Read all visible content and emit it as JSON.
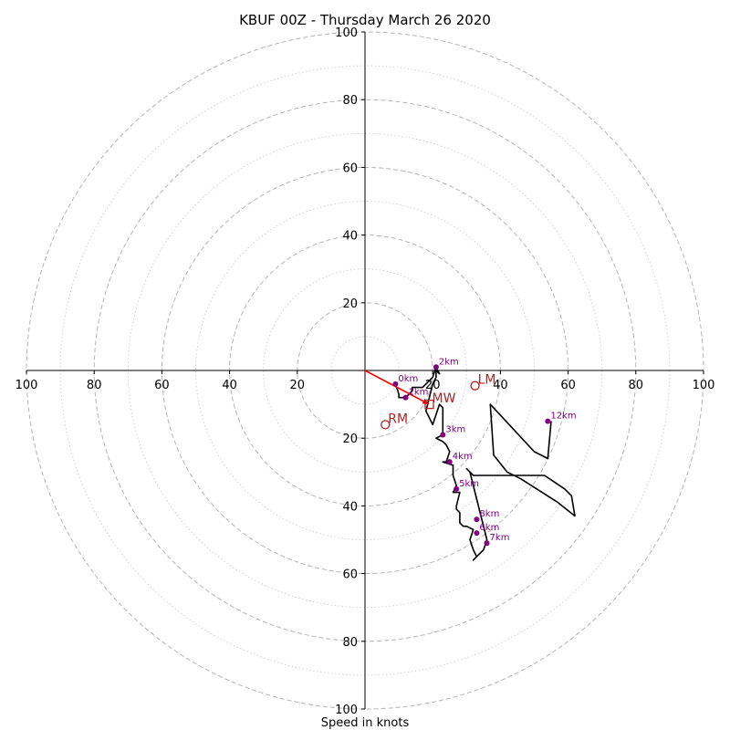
{
  "chart_data": {
    "type": "line",
    "title": "KBUF 00Z - Thursday March 26 2020",
    "xlabel": "Speed in knots",
    "axis_range": [
      -100,
      100
    ],
    "ring_step_major": 20,
    "ring_step_minor": 10,
    "grid": true,
    "tick_labels": {
      "left": [
        "100",
        "80",
        "60",
        "40",
        "20"
      ],
      "right": [
        "20",
        "40",
        "60",
        "80",
        "100"
      ],
      "top": [
        "100",
        "80",
        "60",
        "40",
        "20"
      ],
      "bottom": [
        "20",
        "40",
        "60",
        "80",
        "100"
      ]
    },
    "colors": {
      "hodograph": "#000000",
      "height_marker": "#800080",
      "storm_motion": "#b22222",
      "mean_wind_vector": "#ff0000",
      "major_ring": "#b4b4b4",
      "minor_ring": "#d2d2d2"
    },
    "hodograph": {
      "u": [
        9,
        10,
        10,
        12,
        14,
        14,
        17,
        20,
        21,
        22,
        21,
        21,
        20,
        19,
        18,
        20,
        22,
        23,
        23,
        21,
        23,
        24,
        25,
        24,
        23,
        26,
        26,
        27,
        26,
        28,
        27,
        27,
        28,
        28,
        29,
        30,
        32,
        31,
        32,
        33,
        32,
        34,
        35,
        36,
        33,
        31,
        30,
        32,
        41,
        53,
        56,
        59,
        61,
        62,
        57,
        46,
        42,
        38,
        37,
        37,
        50,
        54,
        55
      ],
      "v": [
        -4,
        -7,
        -8,
        -8,
        -6,
        -5,
        -5,
        -2,
        1,
        -1,
        0,
        -2,
        -4,
        -8,
        -12,
        -16,
        -10,
        -11,
        -19,
        -20,
        -21,
        -22,
        -24,
        -27,
        -27,
        -28,
        -31,
        -34,
        -36,
        -36,
        -40,
        -41,
        -42,
        -45,
        -46,
        -46,
        -47,
        -50,
        -53,
        -55,
        -56,
        -54,
        -53,
        -50,
        -38,
        -30,
        -29,
        -31,
        -31,
        -31,
        -33,
        -35,
        -37,
        -43,
        -39,
        -32,
        -30,
        -25,
        -10,
        -10,
        -24,
        -26,
        -15
      ]
    },
    "height_markers": [
      {
        "label": "0km",
        "u": 9,
        "v": -4
      },
      {
        "label": "1km",
        "u": 12,
        "v": -8
      },
      {
        "label": "2km",
        "u": 21,
        "v": 1
      },
      {
        "label": "3km",
        "u": 23,
        "v": -19
      },
      {
        "label": "4km",
        "u": 25,
        "v": -27
      },
      {
        "label": "5km",
        "u": 27,
        "v": -35
      },
      {
        "label": "6km",
        "u": 33,
        "v": -48
      },
      {
        "label": "7km",
        "u": 36,
        "v": -51
      },
      {
        "label": "8km",
        "u": 33,
        "v": -44
      },
      {
        "label": "12km",
        "u": 54,
        "v": -15
      }
    ],
    "storm_motions": [
      {
        "label": "LM",
        "u": 32.5,
        "v": -4.5,
        "marker": "circle"
      },
      {
        "label": "RM",
        "u": 6,
        "v": -16,
        "marker": "circle"
      },
      {
        "label": "MW",
        "u": 19,
        "v": -10,
        "marker": "square"
      }
    ],
    "mean_wind_arrow": {
      "u": 19,
      "v": -10
    }
  }
}
